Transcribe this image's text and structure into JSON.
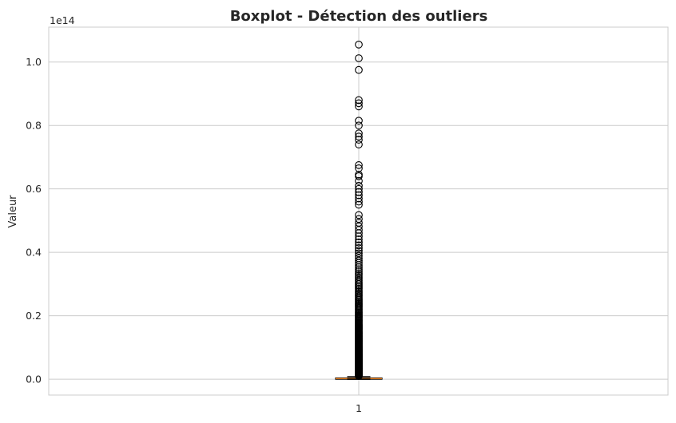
{
  "chart_data": {
    "type": "boxplot",
    "title": "Boxplot - Détection des outliers",
    "xlabel": "",
    "ylabel": "Valeur",
    "y_scale_offset_label": "1e14",
    "y_scale_factor": 100000000000000.0,
    "ylim": [
      -0.05,
      1.11
    ],
    "yticks": [
      0.0,
      0.2,
      0.4,
      0.6,
      0.8,
      1.0
    ],
    "ytick_labels": [
      "0.0",
      "0.2",
      "0.4",
      "0.6",
      "0.8",
      "1.0"
    ],
    "categories": [
      "1"
    ],
    "grid": true,
    "box": {
      "whisker_low": 0.0,
      "q1": 0.0,
      "median": 0.002,
      "q3": 0.004,
      "whisker_high": 0.008,
      "color": "#000000",
      "median_color": "#e8801f"
    },
    "outliers_extremes": [
      1.055,
      1.012,
      0.975,
      0.88,
      0.87,
      0.86,
      0.815,
      0.8,
      0.775,
      0.765,
      0.755,
      0.74,
      0.675,
      0.665,
      0.645,
      0.64,
      0.625,
      0.61,
      0.6,
      0.59,
      0.58,
      0.57,
      0.56,
      0.55
    ],
    "outliers_dense_range": [
      0.01,
      0.53
    ],
    "colors": {
      "grid": "#cccccc",
      "spine": "#cccccc",
      "marker_edge": "#000000",
      "median": "#e8801f"
    }
  }
}
